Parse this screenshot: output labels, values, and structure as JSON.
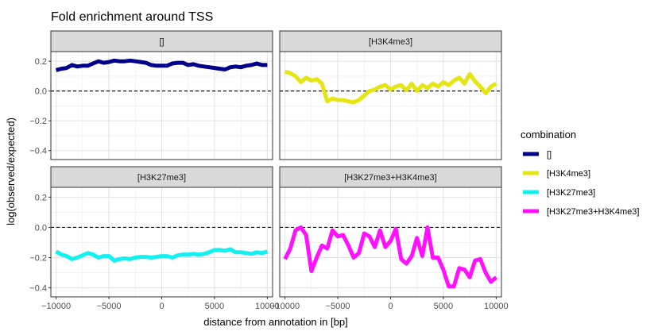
{
  "chart_data": {
    "type": "line",
    "title": "Fold enrichment around TSS",
    "xlabel": "distance from annotation in [bp]",
    "ylabel": "log(observed/expected)",
    "xlim": [
      -10500,
      10500
    ],
    "ylim": [
      -0.46,
      0.265
    ],
    "x_ticks": [
      -10000,
      -5000,
      0,
      5000,
      10000
    ],
    "x_tick_labels": [
      "−10000",
      "−5000",
      "0",
      "5000",
      "10000"
    ],
    "y_ticks": [
      -0.4,
      -0.2,
      0.0,
      0.2
    ],
    "y_tick_labels": [
      "−0.4",
      "−0.2",
      "0.0",
      "0.2"
    ],
    "reference_line": {
      "y": 0,
      "style": "dashed"
    },
    "grid": true,
    "legend": {
      "title": "combination",
      "position": "right"
    },
    "x": [
      -10000,
      -9500,
      -9000,
      -8500,
      -8000,
      -7500,
      -7000,
      -6500,
      -6000,
      -5500,
      -5000,
      -4500,
      -4000,
      -3500,
      -3000,
      -2500,
      -2000,
      -1500,
      -1000,
      -500,
      0,
      500,
      1000,
      1500,
      2000,
      2500,
      3000,
      3500,
      4000,
      4500,
      5000,
      5500,
      6000,
      6500,
      7000,
      7500,
      8000,
      8500,
      9000,
      9500,
      10000
    ],
    "panels": [
      {
        "strip": "[]",
        "series": "[]",
        "color": "#00008B",
        "values": [
          0.14,
          0.15,
          0.155,
          0.175,
          0.165,
          0.17,
          0.17,
          0.185,
          0.2,
          0.19,
          0.195,
          0.205,
          0.2,
          0.2,
          0.205,
          0.2,
          0.195,
          0.19,
          0.175,
          0.17,
          0.17,
          0.17,
          0.185,
          0.19,
          0.19,
          0.175,
          0.18,
          0.17,
          0.165,
          0.16,
          0.155,
          0.15,
          0.145,
          0.16,
          0.165,
          0.16,
          0.17,
          0.175,
          0.185,
          0.175,
          0.175
        ]
      },
      {
        "strip": "[H3K4me3]",
        "series": "[H3K4me3]",
        "color": "#E5E512",
        "values": [
          0.13,
          0.12,
          0.1,
          0.06,
          0.09,
          0.07,
          0.08,
          0.05,
          -0.07,
          -0.05,
          -0.06,
          -0.06,
          -0.07,
          -0.075,
          -0.06,
          -0.03,
          0.0,
          0.01,
          0.03,
          0.04,
          0.01,
          0.03,
          0.04,
          0.005,
          0.05,
          0.0,
          0.04,
          0.02,
          0.05,
          0.03,
          0.06,
          0.04,
          0.07,
          0.09,
          0.05,
          0.115,
          0.065,
          0.03,
          -0.015,
          0.03,
          0.05
        ]
      },
      {
        "strip": "[H3K27me3]",
        "series": "[H3K27me3]",
        "color": "#12F0F0",
        "values": [
          -0.16,
          -0.18,
          -0.19,
          -0.21,
          -0.2,
          -0.185,
          -0.17,
          -0.18,
          -0.2,
          -0.19,
          -0.19,
          -0.22,
          -0.21,
          -0.205,
          -0.21,
          -0.2,
          -0.195,
          -0.195,
          -0.2,
          -0.195,
          -0.19,
          -0.19,
          -0.2,
          -0.185,
          -0.18,
          -0.18,
          -0.175,
          -0.18,
          -0.175,
          -0.165,
          -0.15,
          -0.15,
          -0.155,
          -0.145,
          -0.165,
          -0.165,
          -0.17,
          -0.175,
          -0.165,
          -0.17,
          -0.16
        ]
      },
      {
        "strip": "[H3K27me3+H3K4me3]",
        "series": "[H3K27me3+H3K4me3]",
        "color": "#FF11FF",
        "values": [
          -0.21,
          -0.14,
          -0.02,
          0.0,
          -0.05,
          -0.29,
          -0.2,
          -0.12,
          -0.14,
          -0.02,
          -0.06,
          -0.05,
          -0.12,
          -0.2,
          -0.17,
          -0.04,
          -0.06,
          -0.13,
          -0.02,
          -0.13,
          -0.09,
          -0.01,
          -0.21,
          -0.24,
          -0.19,
          -0.07,
          -0.19,
          0.0,
          -0.2,
          -0.2,
          -0.28,
          -0.39,
          -0.39,
          -0.27,
          -0.28,
          -0.33,
          -0.22,
          -0.21,
          -0.3,
          -0.36,
          -0.33
        ]
      }
    ]
  }
}
